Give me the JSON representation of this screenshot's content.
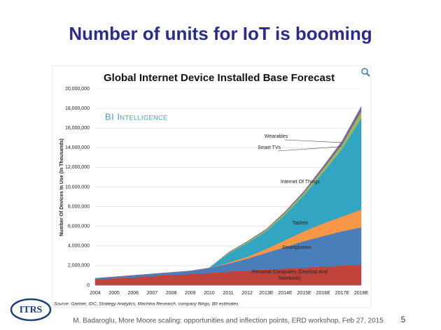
{
  "slide": {
    "title": "Number of units for IoT is booming",
    "logo": "ITRS",
    "footer": "M. Badaroglu, More Moore scaling: opportunities and inflection points, ERD workshop, Feb 27, 2015",
    "page_number": "5"
  },
  "chart_data": {
    "type": "stacked-area",
    "title": "Global Internet Device Installed Base Forecast",
    "watermark": "BI Intelligence",
    "y_label": "Number Of Devices In Use (In Thousands)",
    "source": "Source: Gartner, IDC, Strategy Analytics, Machina Research, company filings, BII estimates",
    "categories": [
      "2004",
      "2005",
      "2006",
      "2007",
      "2008",
      "2009",
      "2010",
      "2011",
      "2012",
      "2013E",
      "2014E",
      "2015E",
      "2016E",
      "2017E",
      "2018E"
    ],
    "ylim": [
      0,
      20000000
    ],
    "yticks": [
      0,
      {
        "value": 2000000,
        "label": "2,000,000"
      },
      {
        "value": 4000000,
        "label": "4,000,000"
      },
      {
        "value": 6000000,
        "label": "6,000,000"
      },
      {
        "value": 8000000,
        "label": "8,000,000"
      },
      {
        "value": 10000000,
        "label": "10,000,000"
      },
      {
        "value": 12000000,
        "label": "12,000,000"
      },
      {
        "value": 14000000,
        "label": "14,000,000"
      },
      {
        "value": 16000000,
        "label": "16,000,000"
      },
      {
        "value": 18000000,
        "label": "18,000,000"
      },
      {
        "value": 20000000,
        "label": "20,000,000"
      }
    ],
    "grid": true,
    "series": [
      {
        "name": "Personal Computers (Desktop And Notebook)",
        "color": "#c0433c",
        "values": [
          600000,
          700000,
          800000,
          950000,
          1050000,
          1150000,
          1250000,
          1400000,
          1500000,
          1600000,
          1700000,
          1800000,
          1900000,
          2000000,
          2100000
        ]
      },
      {
        "name": "Smartphones",
        "color": "#4a7ebb",
        "values": [
          100000,
          150000,
          200000,
          200000,
          250000,
          300000,
          500000,
          800000,
          1200000,
          1700000,
          2200000,
          2700000,
          3100000,
          3500000,
          3800000
        ]
      },
      {
        "name": "Tablets",
        "color": "#f79646",
        "values": [
          0,
          0,
          0,
          0,
          0,
          0,
          0,
          100000,
          200000,
          400000,
          700000,
          1000000,
          1300000,
          1500000,
          1800000
        ]
      },
      {
        "name": "Internet Of Things",
        "color": "#31a5c2",
        "values": [
          0,
          0,
          0,
          0,
          0,
          0,
          0,
          900000,
          1400000,
          1800000,
          2600000,
          3700000,
          5200000,
          6900000,
          9300000
        ]
      },
      {
        "name": "Smart TVs",
        "color": "#9bbb59",
        "values": [
          0,
          0,
          0,
          0,
          0,
          0,
          0,
          100000,
          120000,
          150000,
          200000,
          250000,
          350000,
          450000,
          700000
        ]
      },
      {
        "name": "Wearables",
        "color": "#8064a2",
        "values": [
          0,
          0,
          0,
          0,
          0,
          0,
          0,
          30000,
          40000,
          60000,
          100000,
          150000,
          250000,
          350000,
          500000
        ]
      }
    ]
  }
}
